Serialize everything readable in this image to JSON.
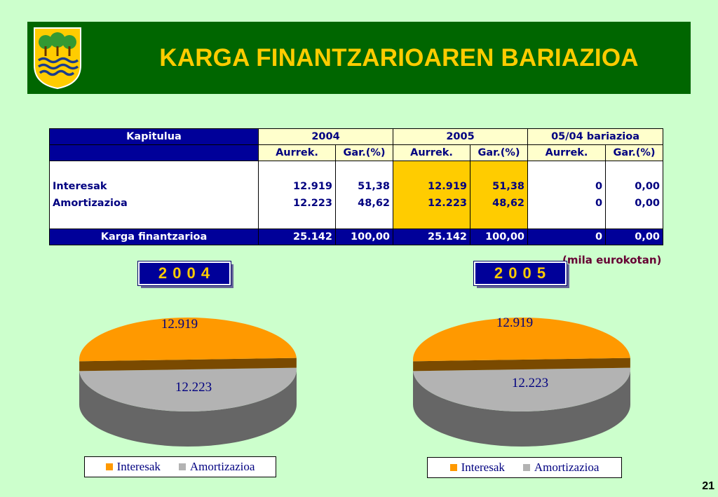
{
  "header": {
    "title": "KARGA FINANTZARIOAREN BARIAZIOA",
    "bg": "#006600",
    "title_color": "#ffcc00"
  },
  "table": {
    "col_kapitulua": "Kapitulua",
    "year_a": "2004",
    "year_b": "2005",
    "year_c": "05/04 bariazioa",
    "sub_aurrek": "Aurrek.",
    "sub_gar": "Gar.(%)",
    "rows": [
      {
        "label": "Interesak",
        "a_aurrek": "12.919",
        "a_gar": "51,38",
        "b_aurrek": "12.919",
        "b_gar": "51,38",
        "c_aurrek": "0",
        "c_gar": "0,00"
      },
      {
        "label": "Amortizazioa",
        "a_aurrek": "12.223",
        "a_gar": "48,62",
        "b_aurrek": "12.223",
        "b_gar": "48,62",
        "c_aurrek": "0",
        "c_gar": "0,00"
      }
    ],
    "total": {
      "label": "Karga finantzarioa",
      "a_aurrek": "25.142",
      "a_gar": "100,00",
      "b_aurrek": "25.142",
      "b_gar": "100,00",
      "c_aurrek": "0",
      "c_gar": "0,00"
    }
  },
  "unit_note": "(mila eurokotan)",
  "page_number": "21",
  "chart_data": [
    {
      "type": "pie",
      "title": "2 0 0 4",
      "categories": [
        "Interesak",
        "Amortizazioa"
      ],
      "values": [
        12919,
        12223
      ],
      "data_labels": [
        "12.919",
        "12.223"
      ],
      "colors": [
        "#ff9900",
        "#b3b3b3"
      ],
      "legend": "bottom"
    },
    {
      "type": "pie",
      "title": "2 0 0 5",
      "categories": [
        "Interesak",
        "Amortizazioa"
      ],
      "values": [
        12919,
        12223
      ],
      "data_labels": [
        "12.919",
        "12.223"
      ],
      "colors": [
        "#ff9900",
        "#b3b3b3"
      ],
      "legend": "bottom"
    }
  ]
}
